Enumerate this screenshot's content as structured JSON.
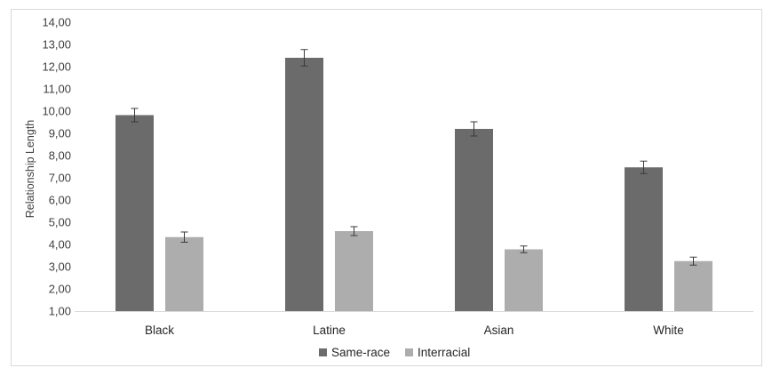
{
  "chart_data": {
    "type": "bar",
    "title": "",
    "xlabel": "",
    "ylabel": "Relationship Length",
    "ylim": [
      1,
      14
    ],
    "ytick_step": 1,
    "ytick_labels": [
      "1,00",
      "2,00",
      "3,00",
      "4,00",
      "5,00",
      "6,00",
      "7,00",
      "8,00",
      "9,00",
      "10,00",
      "11,00",
      "12,00",
      "13,00",
      "14,00"
    ],
    "grid": false,
    "error_bars": true,
    "legend_position": "bottom",
    "categories": [
      "Black",
      "Latine",
      "Asian",
      "White"
    ],
    "series": [
      {
        "name": "Same-race",
        "color": "#6b6b6b",
        "values": [
          9.82,
          12.4,
          9.2,
          7.47
        ],
        "errors": [
          0.3,
          0.37,
          0.32,
          0.28
        ]
      },
      {
        "name": "Interracial",
        "color": "#adadad",
        "values": [
          4.33,
          4.6,
          3.78,
          3.25
        ],
        "errors": [
          0.23,
          0.2,
          0.15,
          0.18
        ]
      }
    ]
  }
}
